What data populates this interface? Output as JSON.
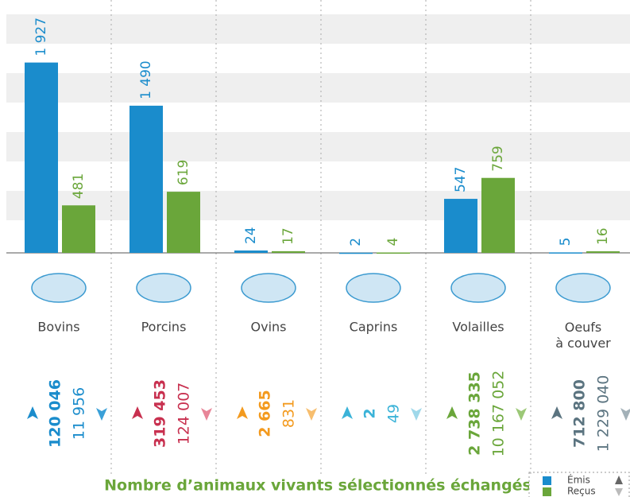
{
  "chart_data": {
    "type": "bar",
    "title": "Nombre d’animaux vivants sélectionnés échangés",
    "categories": [
      "Bovins",
      "Porcins",
      "Ovins",
      "Caprins",
      "Volailles",
      "Oeufs\nà couver"
    ],
    "ylim": [
      0,
      2560
    ],
    "series": [
      {
        "name": "Émis",
        "color": "#1a8ccc",
        "values": [
          1927,
          1490,
          24,
          2,
          547,
          5
        ],
        "value_labels": [
          "1 927",
          "1 490",
          "24",
          "2",
          "547",
          "5"
        ]
      },
      {
        "name": "Reçus",
        "color": "#6aa63a",
        "values": [
          481,
          619,
          17,
          4,
          759,
          16
        ],
        "value_labels": [
          "481",
          "619",
          "17",
          "4",
          "759",
          "16"
        ]
      }
    ],
    "totals": [
      {
        "sent": "120 046",
        "received": "11 956",
        "color": "#1a8ccc",
        "light": "#3aa0d8"
      },
      {
        "sent": "319 453",
        "received": "124 007",
        "color": "#c8304f",
        "light": "#e88598"
      },
      {
        "sent": "2 665",
        "received": "831",
        "color": "#f39a1e",
        "light": "#f7be6e"
      },
      {
        "sent": "2",
        "received": "49",
        "color": "#3bb3d8",
        "light": "#9fd8ea"
      },
      {
        "sent": "2 738 335",
        "received": "10 167 052",
        "color": "#6aa63a",
        "light": "#9cc877"
      },
      {
        "sent": "712 800",
        "received": "1 229 040",
        "color": "#5b7480",
        "light": "#a3b1b8"
      }
    ]
  }
}
